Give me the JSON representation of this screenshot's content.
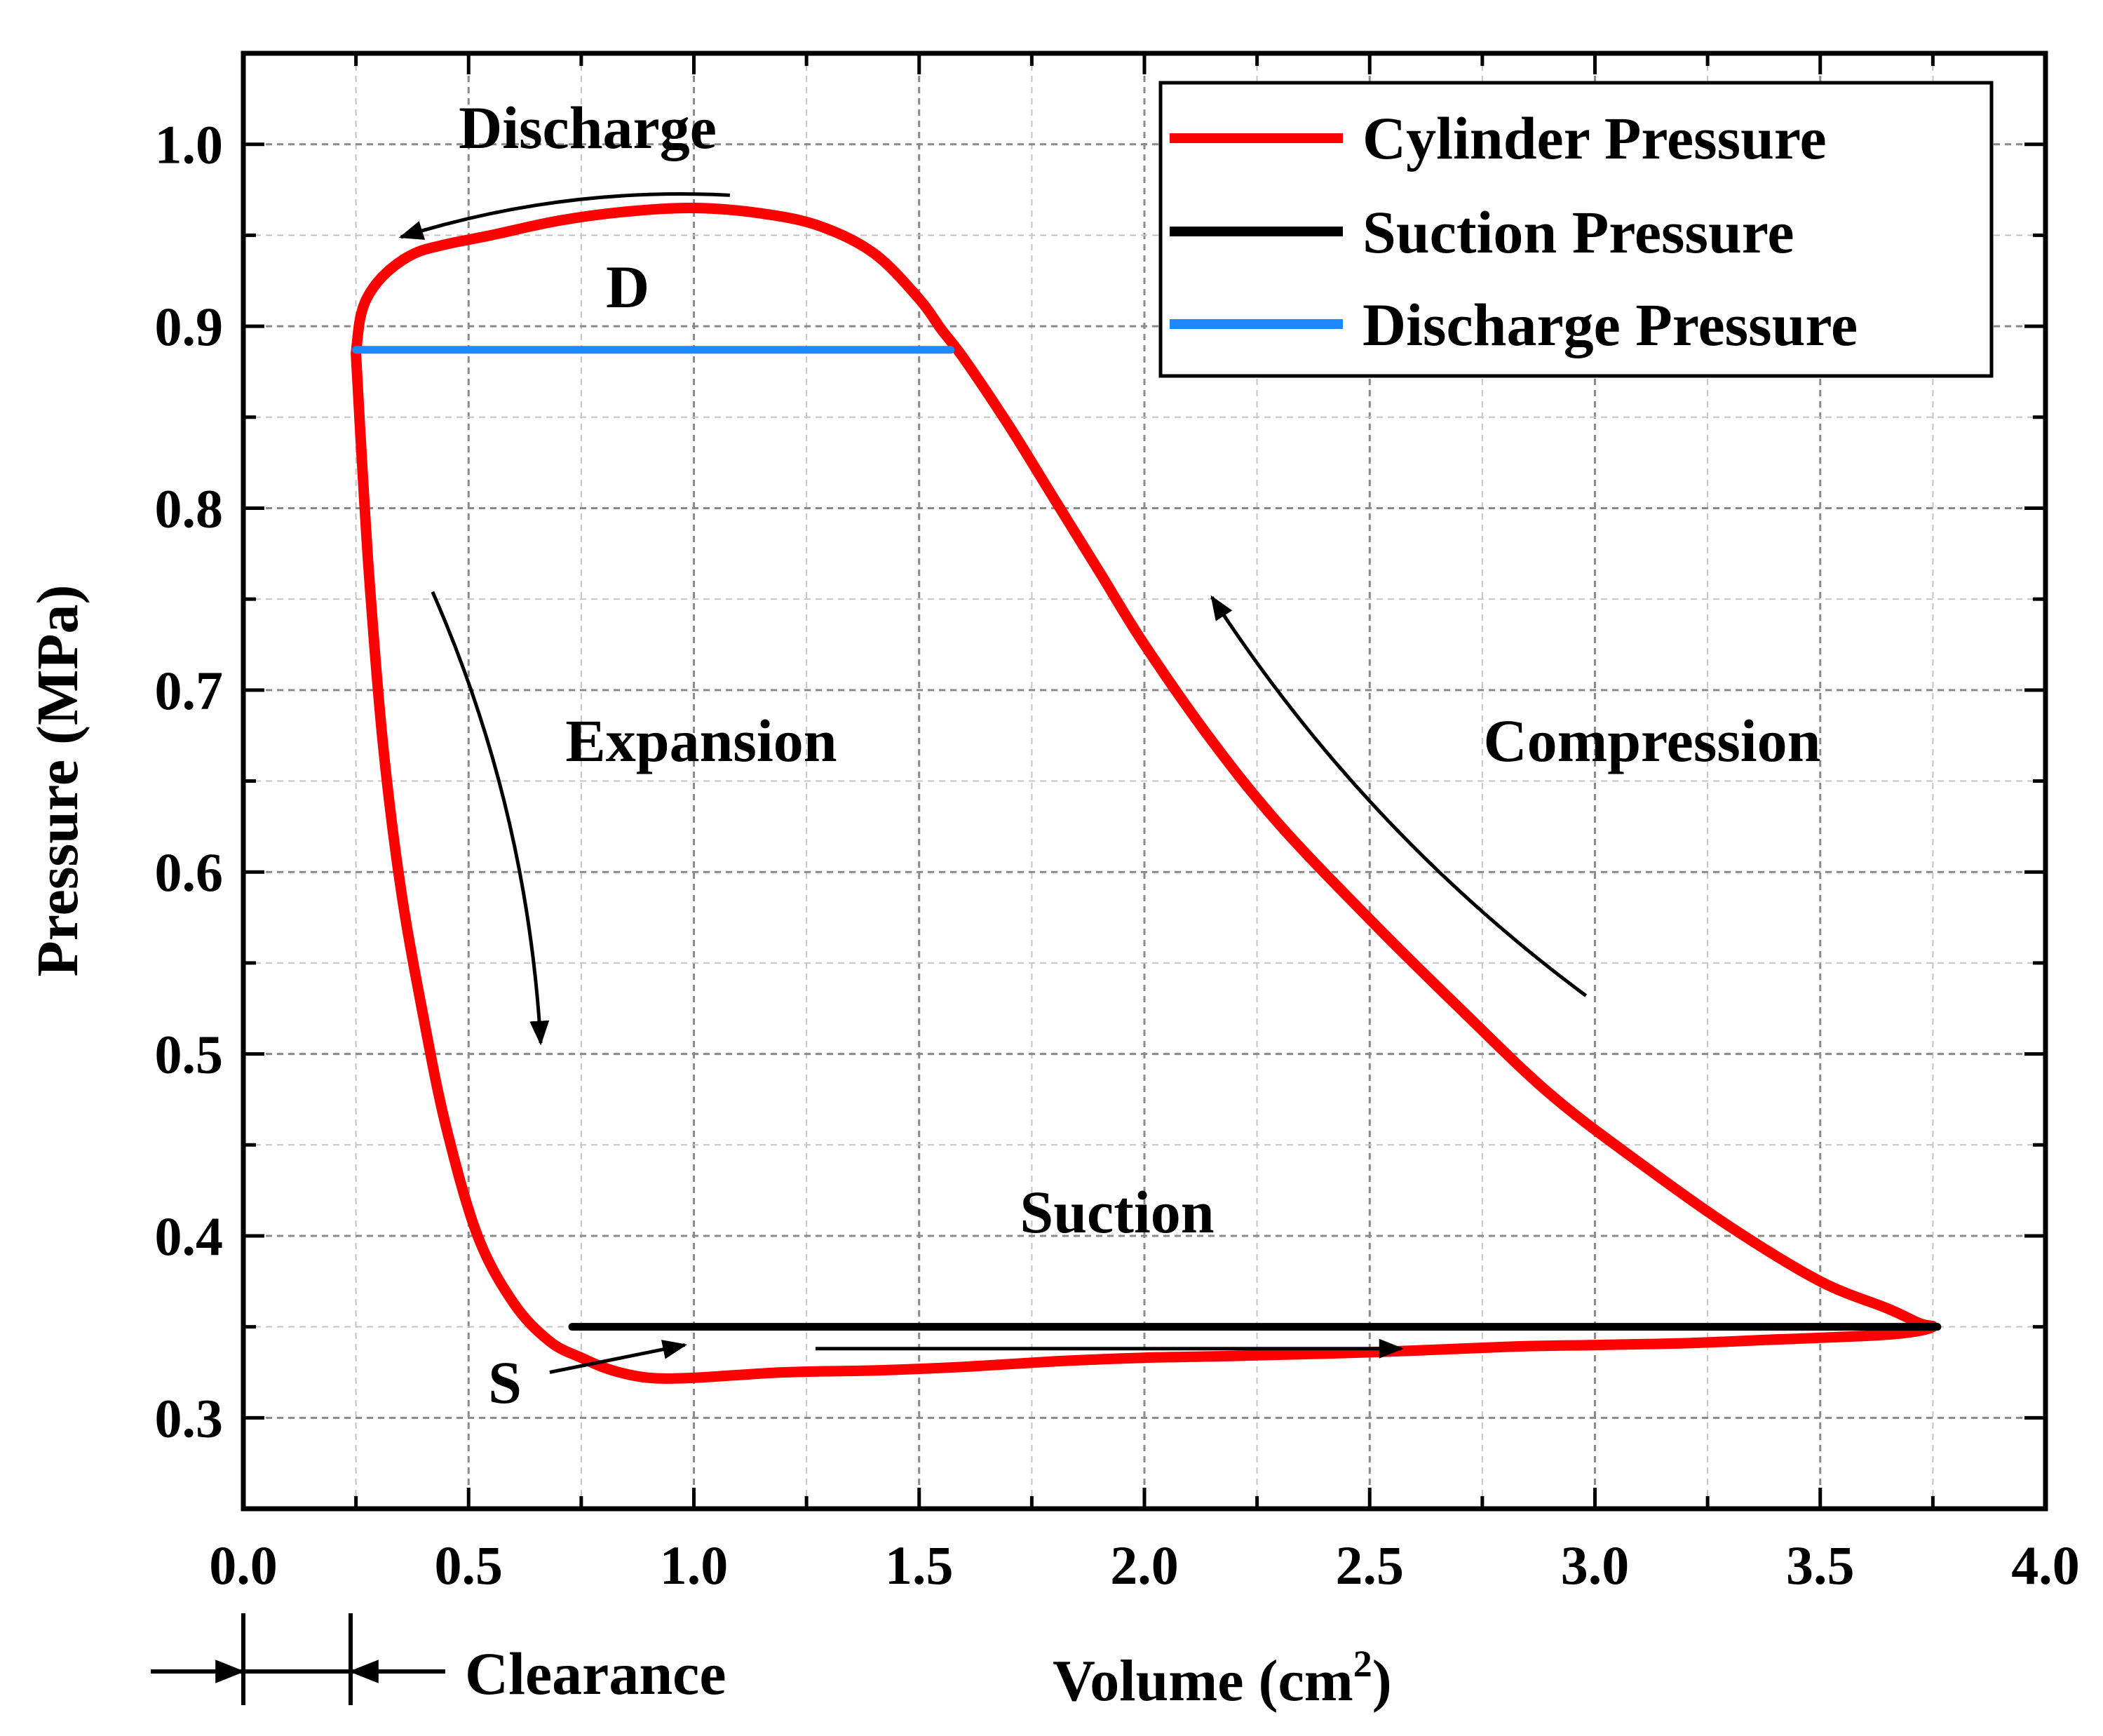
{
  "chart_data": {
    "type": "line",
    "title": "",
    "xlabel": "Volume (cm",
    "xlabel_sup": "2",
    "xlabel_close": ")",
    "ylabel": "Pressure (MPa)",
    "xlim": [
      0.0,
      4.0
    ],
    "ylim": [
      0.25,
      1.05
    ],
    "x_ticks": [
      0.0,
      0.5,
      1.0,
      1.5,
      2.0,
      2.5,
      3.0,
      3.5,
      4.0
    ],
    "x_tick_labels": [
      "0.0",
      "0.5",
      "1.0",
      "1.5",
      "2.0",
      "2.5",
      "3.0",
      "3.5",
      "4.0"
    ],
    "y_ticks": [
      0.3,
      0.4,
      0.5,
      0.6,
      0.7,
      0.8,
      0.9,
      1.0
    ],
    "y_tick_labels": [
      "0.3",
      "0.4",
      "0.5",
      "0.6",
      "0.7",
      "0.8",
      "0.9",
      "1.0"
    ],
    "grid": true,
    "legend_position": "top-right",
    "series": [
      {
        "name": "Cylinder Pressure",
        "color": "#ff0000",
        "x": [
          0.25,
          0.26,
          0.28,
          0.32,
          0.38,
          0.45,
          0.55,
          0.7,
          0.85,
          1.0,
          1.15,
          1.28,
          1.4,
          1.5,
          1.55,
          1.6,
          1.7,
          1.8,
          1.9,
          2.0,
          2.15,
          2.3,
          2.5,
          2.7,
          2.9,
          3.1,
          3.3,
          3.5,
          3.65,
          3.72,
          3.75,
          3.7,
          3.6,
          3.4,
          3.2,
          3.0,
          2.8,
          2.5,
          2.2,
          2.0,
          1.8,
          1.6,
          1.4,
          1.2,
          1.0,
          0.9,
          0.82,
          0.75,
          0.68,
          0.6,
          0.52,
          0.45,
          0.4,
          0.35,
          0.31,
          0.28,
          0.26,
          0.25
        ],
        "y": [
          0.885,
          0.905,
          0.918,
          0.93,
          0.94,
          0.945,
          0.95,
          0.958,
          0.963,
          0.965,
          0.962,
          0.955,
          0.94,
          0.915,
          0.898,
          0.882,
          0.845,
          0.805,
          0.765,
          0.725,
          0.672,
          0.626,
          0.574,
          0.525,
          0.478,
          0.44,
          0.405,
          0.375,
          0.36,
          0.352,
          0.35,
          0.347,
          0.345,
          0.343,
          0.341,
          0.34,
          0.339,
          0.336,
          0.334,
          0.333,
          0.331,
          0.328,
          0.326,
          0.325,
          0.322,
          0.322,
          0.326,
          0.333,
          0.342,
          0.363,
          0.4,
          0.46,
          0.52,
          0.59,
          0.67,
          0.76,
          0.84,
          0.885
        ]
      },
      {
        "name": "Suction Pressure",
        "color": "#000000",
        "x": [
          0.73,
          3.76
        ],
        "y": [
          0.35,
          0.35
        ]
      },
      {
        "name": "Discharge Pressure",
        "color": "#1e88ff",
        "x": [
          0.25,
          1.57
        ],
        "y": [
          0.887,
          0.887
        ]
      }
    ],
    "annotations": [
      {
        "text": "Discharge",
        "x": 0.76,
        "y": 1.008
      },
      {
        "text": "D",
        "x": 0.85,
        "y": 0.922
      },
      {
        "text": "Expansion",
        "x": 1.02,
        "y": 0.68
      },
      {
        "text": "Compression",
        "x": 3.13,
        "y": 0.68
      },
      {
        "text": "Suction",
        "x": 1.95,
        "y": 0.42
      },
      {
        "text": "S",
        "x": 0.58,
        "y": 0.318
      },
      {
        "text": "Clearance",
        "x": 0.0,
        "y": 0.0
      }
    ],
    "arrows": [
      {
        "name": "discharge-arrow",
        "x1": 1.08,
        "y1": 0.972,
        "x2": 0.35,
        "y2": 0.949,
        "curve": "up"
      },
      {
        "name": "expansion-arrow",
        "x1": 0.42,
        "y1": 0.754,
        "x2": 0.66,
        "y2": 0.506,
        "curve": "right"
      },
      {
        "name": "compression-arrow",
        "x1": 2.98,
        "y1": 0.532,
        "x2": 2.15,
        "y2": 0.751,
        "curve": "left"
      },
      {
        "name": "suction-arrow",
        "x1": 1.27,
        "y1": 0.338,
        "x2": 2.57,
        "y2": 0.338,
        "curve": "none"
      },
      {
        "name": "s-arrow",
        "x1": 0.68,
        "y1": 0.325,
        "x2": 0.98,
        "y2": 0.34,
        "curve": "none"
      }
    ]
  }
}
